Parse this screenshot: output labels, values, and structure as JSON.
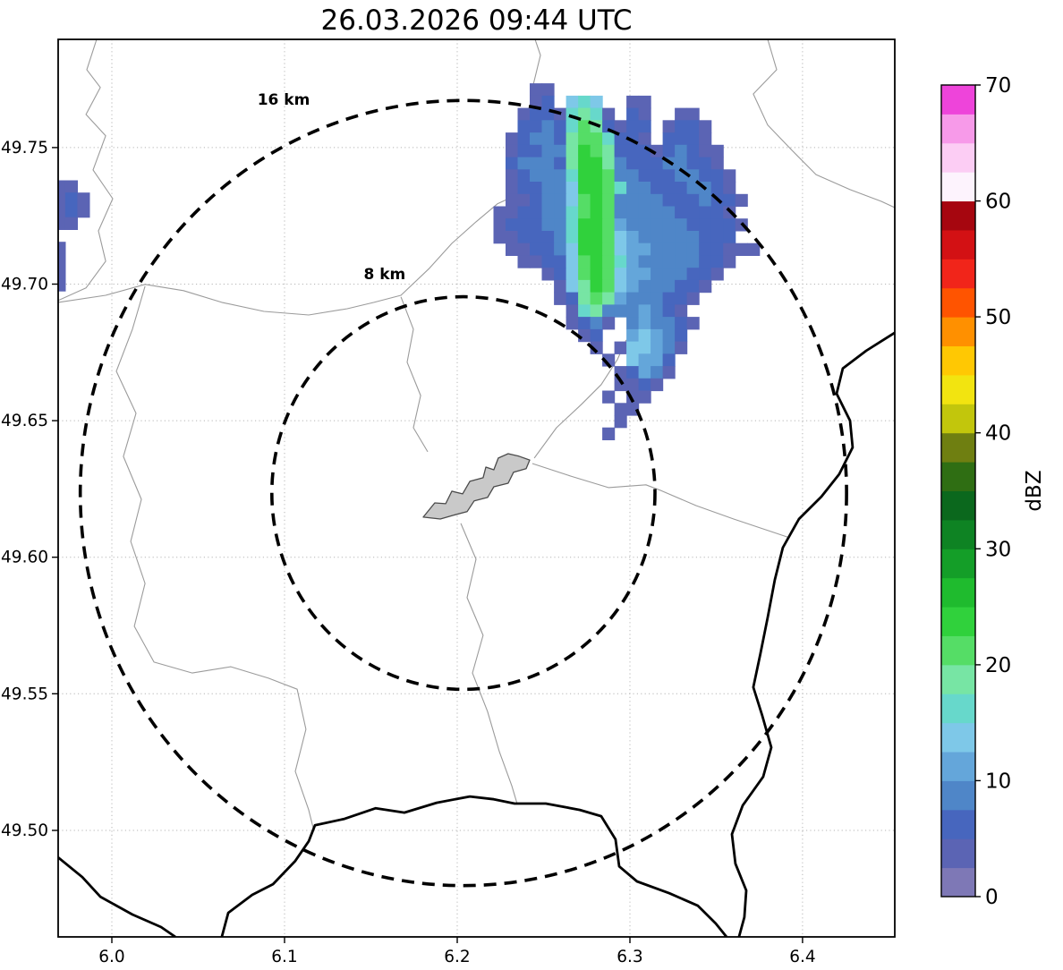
{
  "title": "26.03.2026 09:44 UTC",
  "colors": {
    "background": "#ffffff",
    "grid": "#b5b5b5",
    "admin_line": "#9b9b9b",
    "country_border": "#000000",
    "airport_fill": "#c9c9c9",
    "airport_stroke": "#4a4a4a",
    "ring": "#000000"
  },
  "chart_data": {
    "type": "heatmap",
    "title": "26.03.2026 09:44 UTC",
    "xlabel": "",
    "ylabel": "",
    "grid": true,
    "xlim": [
      5.9689,
      6.4534
    ],
    "ylim": [
      49.461,
      49.7896
    ],
    "x_ticks": [
      6.0,
      6.1,
      6.2,
      6.3,
      6.4
    ],
    "x_tick_labels": [
      "6.0",
      "6.1",
      "6.2",
      "6.3",
      "6.4"
    ],
    "y_ticks": [
      49.5,
      49.55,
      49.6,
      49.65,
      49.7,
      49.75
    ],
    "y_tick_labels": [
      "49.50",
      "49.55",
      "49.60",
      "49.65",
      "49.70",
      "49.75"
    ],
    "radar_site": {
      "lon": 6.2036,
      "lat": 49.6235
    },
    "range_rings": [
      {
        "label": "16 km",
        "radius_km": 16,
        "label_lon": 6.0995,
        "label_lat": 49.7657
      },
      {
        "label": "8 km",
        "radius_km": 8,
        "label_lon": 6.158,
        "label_lat": 49.7018
      }
    ],
    "colorbar": {
      "label": "dBZ",
      "vmin": 0,
      "vmax": 70,
      "step_dbz": 2.5,
      "ticks": [
        0,
        10,
        20,
        30,
        40,
        50,
        60,
        70
      ],
      "colors": [
        "#7e78b6",
        "#5b64b4",
        "#4766be",
        "#4f86c8",
        "#64a6da",
        "#7ec8e8",
        "#67d8cb",
        "#77e5a4",
        "#55dd66",
        "#30d13c",
        "#1fbb2e",
        "#149e28",
        "#0e8323",
        "#0b681d",
        "#2f6e13",
        "#6f7f11",
        "#c2c60c",
        "#f2e410",
        "#ffc803",
        "#ff9000",
        "#ff5400",
        "#f1251a",
        "#d31114",
        "#a6060f",
        "#fdf3fd",
        "#fccdf4",
        "#f79ae9",
        "#ee44da"
      ]
    },
    "echo_grid": {
      "chars": "123456789A",
      "bin_upper_dbz": [
        2.5,
        5,
        7.5,
        10,
        12.5,
        15,
        17.5,
        20,
        22.5,
        25
      ],
      "patches": [
        {
          "lon0": 6.2,
          "lat0": 49.778,
          "dlon": 0.007,
          "dlat": 0.0045,
          "rows": [
            "..............................",
            "......22......................",
            "......23.676..22..............",
            ".....23327872.32..22..........",
            ".....33437983233.2332.........",
            "....234438997332.3332.........",
            "....233448A98333234322........",
            "....344438AA8433344332........",
            "....234447AA94433344332.......",
            "....233446AA97443334432.......",
            "....2234469A944443334332......",
            "...22334479A94444433332.......",
            "...2333447AA954444433332......",
            "...2233347AA96544444333.......",
            "....223346AA9655444433222.....",
            ".....223369A97544444332.......",
            ".......2369A9655444332........",
            "........268A965444332.........",
            "........238985444332..........",
            ".........2784445432...........",
            ".........2342.454432..........",
            "..........23..56543...........",
            "...........2.266542...........",
            "............2.6553............",
            ".............23542............",
            ".............2232.............",
            "............2.22..............",
            ".............22...............",
            ".............2................",
            "............2................."
          ]
        },
        {
          "lon0": 5.966,
          "lat0": 49.738,
          "dlon": 0.007,
          "dlat": 0.0045,
          "rows": [
            "22.",
            "232",
            "232",
            "22.",
            "...",
            "2..",
            "2..",
            "2..",
            "2.."
          ]
        }
      ]
    },
    "airport_outline": [
      [
        6.1803,
        49.6147
      ],
      [
        6.187,
        49.6199
      ],
      [
        6.1933,
        49.6196
      ],
      [
        6.1969,
        49.6242
      ],
      [
        6.2031,
        49.6232
      ],
      [
        6.2073,
        49.6278
      ],
      [
        6.215,
        49.6291
      ],
      [
        6.2166,
        49.633
      ],
      [
        6.2212,
        49.632
      ],
      [
        6.2238,
        49.6363
      ],
      [
        6.2295,
        49.6379
      ],
      [
        6.2357,
        49.637
      ],
      [
        6.242,
        49.6356
      ],
      [
        6.2399,
        49.6324
      ],
      [
        6.2326,
        49.6311
      ],
      [
        6.2295,
        49.6271
      ],
      [
        6.2212,
        49.6258
      ],
      [
        6.2176,
        49.6219
      ],
      [
        6.2098,
        49.6206
      ],
      [
        6.2057,
        49.6167
      ],
      [
        6.1974,
        49.6153
      ],
      [
        6.1902,
        49.614
      ]
    ],
    "admin_lines": [
      [
        [
          5.9912,
          49.7896
        ],
        [
          5.9855,
          49.7785
        ],
        [
          5.9933,
          49.772
        ],
        [
          5.985,
          49.7621
        ],
        [
          5.9964,
          49.7543
        ],
        [
          5.9891,
          49.7418
        ],
        [
          6.0005,
          49.7313
        ],
        [
          5.9922,
          49.7195
        ],
        [
          5.9964,
          49.7084
        ],
        [
          5.985,
          49.6986
        ],
        [
          5.9689,
          49.694
        ]
      ],
      [
        [
          5.9689,
          49.6933
        ],
        [
          5.9964,
          49.6959
        ],
        [
          6.0192,
          49.6999
        ],
        [
          6.0415,
          49.6976
        ],
        [
          6.0637,
          49.6933
        ],
        [
          6.0881,
          49.69
        ],
        [
          6.114,
          49.6887
        ],
        [
          6.1363,
          49.691
        ],
        [
          6.1518,
          49.6933
        ],
        [
          6.1674,
          49.6959
        ],
        [
          6.1839,
          49.7058
        ],
        [
          6.1969,
          49.7149
        ],
        [
          6.2109,
          49.7228
        ],
        [
          6.2233,
          49.7294
        ],
        [
          6.2378,
          49.7336
        ],
        [
          6.2461,
          49.7418
        ],
        [
          6.242,
          49.7516
        ],
        [
          6.2477,
          49.7621
        ],
        [
          6.244,
          49.7729
        ],
        [
          6.2482,
          49.7838
        ],
        [
          6.2451,
          49.7896
        ]
      ],
      [
        [
          6.1674,
          49.6953
        ],
        [
          6.1746,
          49.6835
        ],
        [
          6.171,
          49.6714
        ],
        [
          6.1788,
          49.6592
        ],
        [
          6.1746,
          49.6474
        ],
        [
          6.1829,
          49.6386
        ]
      ],
      [
        [
          6.2021,
          49.6124
        ],
        [
          6.2109,
          49.5993
        ],
        [
          6.2057,
          49.5852
        ],
        [
          6.215,
          49.5714
        ],
        [
          6.2088,
          49.5576
        ],
        [
          6.2176,
          49.5435
        ],
        [
          6.2244,
          49.5288
        ],
        [
          6.2316,
          49.5163
        ],
        [
          6.2347,
          49.5098
        ]
      ],
      [
        [
          6.2435,
          49.6343
        ],
        [
          6.2658,
          49.6297
        ],
        [
          6.2876,
          49.6255
        ],
        [
          6.3093,
          49.6265
        ],
        [
          6.3176,
          49.6245
        ],
        [
          6.3383,
          49.6189
        ],
        [
          6.3601,
          49.614
        ],
        [
          6.3912,
          49.6074
        ]
      ],
      [
        [
          6.3798,
          49.7896
        ],
        [
          6.385,
          49.7785
        ],
        [
          6.3715,
          49.7696
        ],
        [
          6.3798,
          49.7582
        ],
        [
          6.3938,
          49.749
        ],
        [
          6.4078,
          49.7401
        ],
        [
          6.4275,
          49.7346
        ],
        [
          6.4456,
          49.7303
        ],
        [
          6.4534,
          49.728
        ]
      ],
      [
        [
          6.0192,
          49.6992
        ],
        [
          6.0119,
          49.6835
        ],
        [
          6.0026,
          49.6681
        ],
        [
          6.014,
          49.6527
        ],
        [
          6.0067,
          49.6369
        ],
        [
          6.0171,
          49.6212
        ],
        [
          6.0109,
          49.6058
        ],
        [
          6.0192,
          49.5904
        ],
        [
          6.013,
          49.5747
        ],
        [
          6.0244,
          49.5616
        ],
        [
          6.0466,
          49.5576
        ],
        [
          6.0689,
          49.5599
        ],
        [
          6.0907,
          49.5557
        ],
        [
          6.1073,
          49.5517
        ],
        [
          6.1124,
          49.537
        ],
        [
          6.1062,
          49.5216
        ],
        [
          6.114,
          49.5075
        ],
        [
          6.1166,
          49.5009
        ]
      ],
      [
        [
          6.2446,
          49.6363
        ],
        [
          6.2575,
          49.6474
        ],
        [
          6.272,
          49.656
        ],
        [
          6.2834,
          49.6632
        ],
        [
          6.2927,
          49.6723
        ],
        [
          6.2979,
          49.6796
        ]
      ]
    ],
    "country_borders": [
      [
        [
          6.4534,
          49.6822
        ],
        [
          6.4368,
          49.6756
        ],
        [
          6.4233,
          49.6691
        ],
        [
          6.4197,
          49.6599
        ],
        [
          6.4275,
          49.65
        ],
        [
          6.429,
          49.6402
        ],
        [
          6.4212,
          49.6304
        ],
        [
          6.4109,
          49.6222
        ],
        [
          6.3979,
          49.614
        ],
        [
          6.3886,
          49.6035
        ],
        [
          6.3839,
          49.5917
        ],
        [
          6.3798,
          49.578
        ],
        [
          6.3756,
          49.5648
        ],
        [
          6.3715,
          49.5524
        ],
        [
          6.3767,
          49.5419
        ],
        [
          6.3819,
          49.5304
        ],
        [
          6.3772,
          49.5196
        ],
        [
          6.3653,
          49.5091
        ],
        [
          6.3591,
          49.4986
        ],
        [
          6.3611,
          49.4878
        ],
        [
          6.3674,
          49.478
        ],
        [
          6.3663,
          49.4682
        ],
        [
          6.3632,
          49.461
        ]
      ],
      [
        [
          6.0637,
          49.461
        ],
        [
          6.0674,
          49.4698
        ],
        [
          6.0813,
          49.4764
        ],
        [
          6.0933,
          49.4803
        ],
        [
          6.1062,
          49.4888
        ],
        [
          6.114,
          49.496
        ],
        [
          6.1176,
          49.5019
        ],
        [
          6.1347,
          49.5042
        ],
        [
          6.1528,
          49.5081
        ],
        [
          6.1694,
          49.5065
        ],
        [
          6.1881,
          49.5101
        ],
        [
          6.2073,
          49.5124
        ],
        [
          6.2212,
          49.5114
        ],
        [
          6.2332,
          49.5098
        ],
        [
          6.2513,
          49.5098
        ],
        [
          6.271,
          49.5075
        ],
        [
          6.2834,
          49.5052
        ],
        [
          6.2917,
          49.4967
        ],
        [
          6.2938,
          49.4868
        ],
        [
          6.3041,
          49.4813
        ],
        [
          6.3228,
          49.477
        ],
        [
          6.3394,
          49.4724
        ],
        [
          6.3497,
          49.4659
        ],
        [
          6.356,
          49.461
        ]
      ],
      [
        [
          5.9689,
          49.4901
        ],
        [
          5.9829,
          49.4829
        ],
        [
          5.9933,
          49.4757
        ],
        [
          6.0119,
          49.4692
        ],
        [
          6.0285,
          49.4646
        ],
        [
          6.0368,
          49.461
        ]
      ]
    ]
  }
}
